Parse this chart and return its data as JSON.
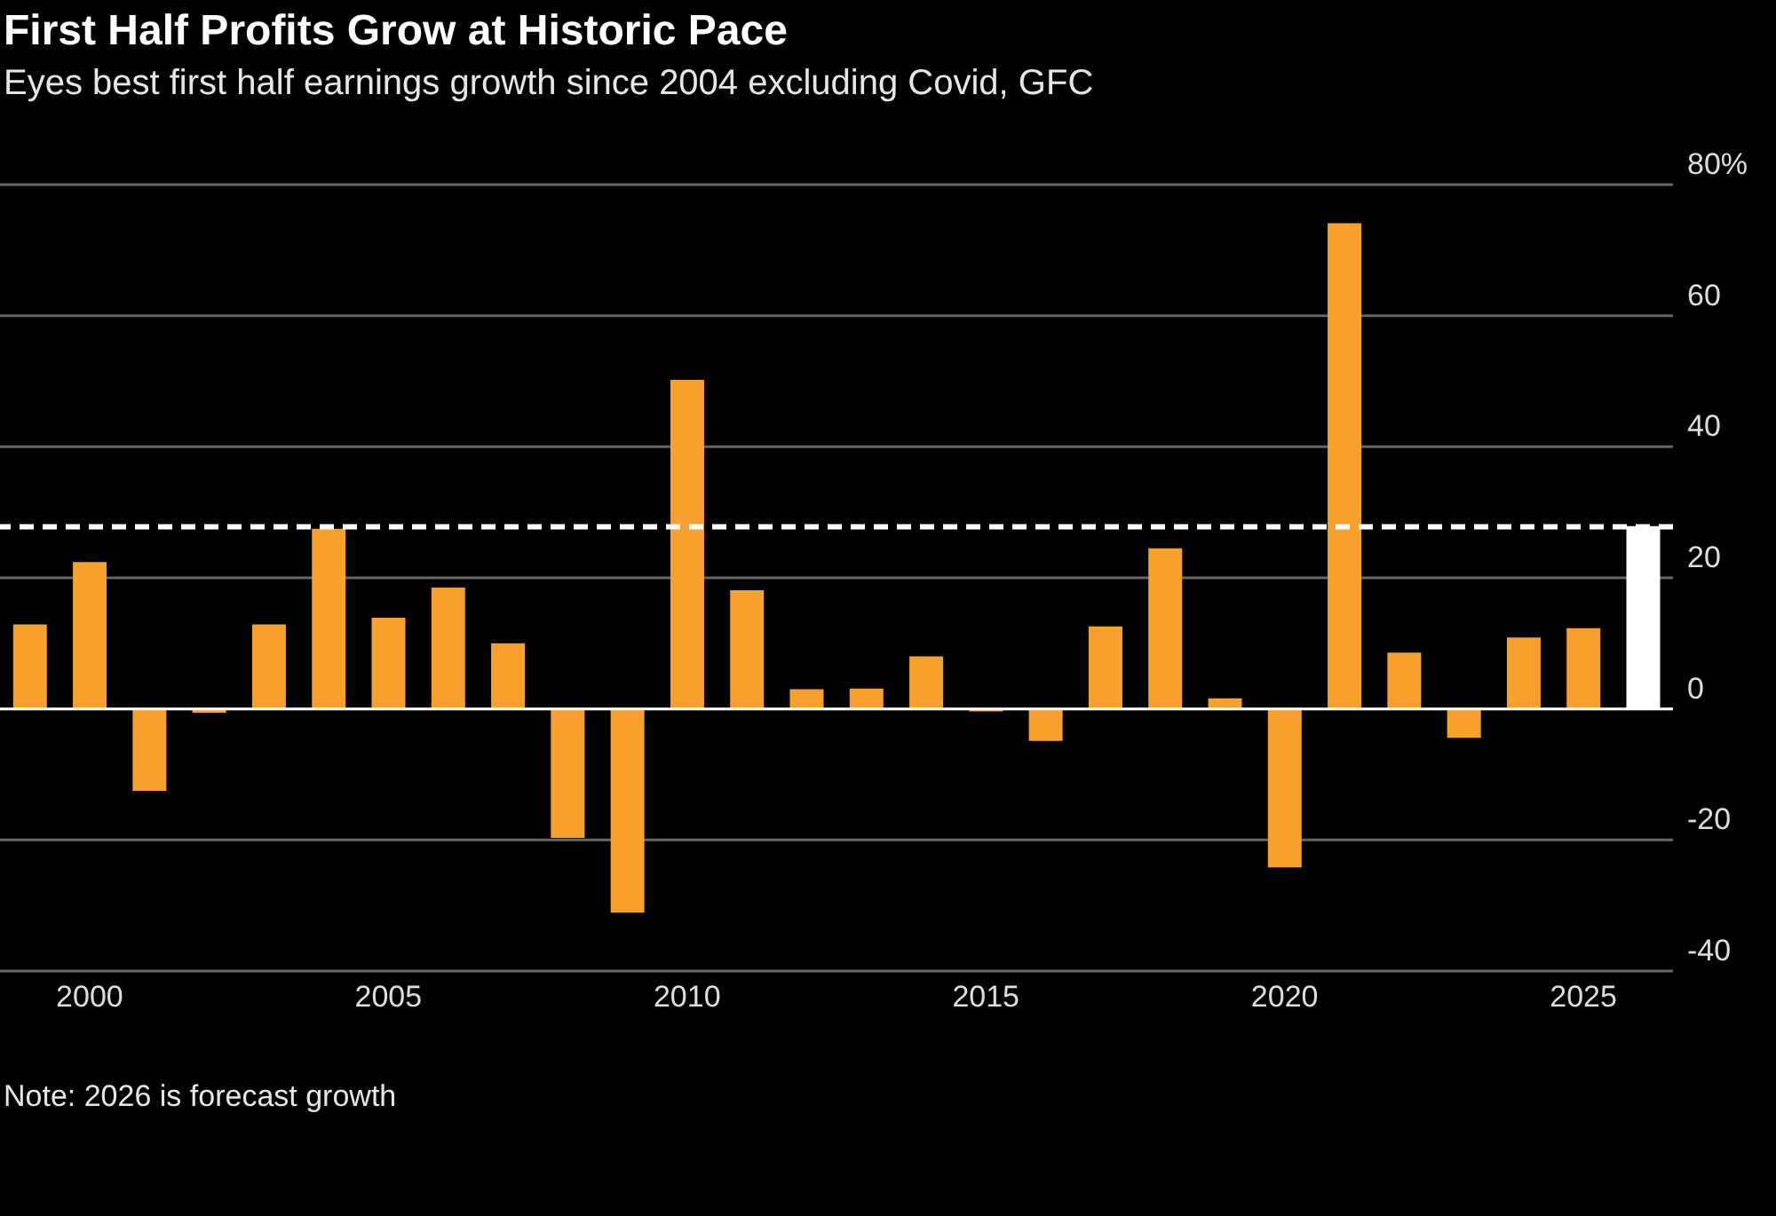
{
  "chart_data": {
    "type": "bar",
    "title": "First Half Profits Grow at Historic Pace",
    "subtitle": "Eyes best first half earnings growth since 2004 excluding Covid, GFC",
    "categories": [
      null,
      "2000",
      null,
      null,
      null,
      null,
      "2005",
      null,
      null,
      null,
      null,
      "2010",
      null,
      null,
      null,
      null,
      "2015",
      null,
      null,
      null,
      null,
      "2020",
      null,
      null,
      null,
      null,
      "2025",
      null
    ],
    "values": [
      12.9,
      22.4,
      -12.5,
      -0.6,
      12.9,
      27.5,
      13.9,
      18.5,
      10.0,
      -19.7,
      -31.1,
      50.2,
      18.1,
      3.0,
      3.1,
      8.0,
      -0.4,
      -4.9,
      12.6,
      24.5,
      1.6,
      -24.2,
      74.1,
      8.6,
      -4.4,
      10.9,
      12.3,
      27.9
    ],
    "colors": [
      "#f7a12c",
      "#f7a12c",
      "#f7a12c",
      "#f7a12c",
      "#f7a12c",
      "#f7a12c",
      "#f7a12c",
      "#f7a12c",
      "#f7a12c",
      "#f7a12c",
      "#f7a12c",
      "#f7a12c",
      "#f7a12c",
      "#f7a12c",
      "#f7a12c",
      "#f7a12c",
      "#f7a12c",
      "#f7a12c",
      "#f7a12c",
      "#f7a12c",
      "#f7a12c",
      "#f7a12c",
      "#f7a12c",
      "#f7a12c",
      "#f7a12c",
      "#f7a12c",
      "#f7a12c",
      "#ffffff"
    ],
    "ylim": [
      -40,
      80
    ],
    "yticks": [
      -40,
      -20,
      0,
      20,
      40,
      60,
      {
        "value": 80,
        "label": "80%"
      }
    ],
    "grid": "y",
    "legend": false,
    "ref_lines": [
      {
        "axis": "y",
        "value": 27.8,
        "color": "#ffffff",
        "line_style": "dashed"
      }
    ],
    "annotations": [
      "Note: 2026 is forecast growth"
    ]
  }
}
